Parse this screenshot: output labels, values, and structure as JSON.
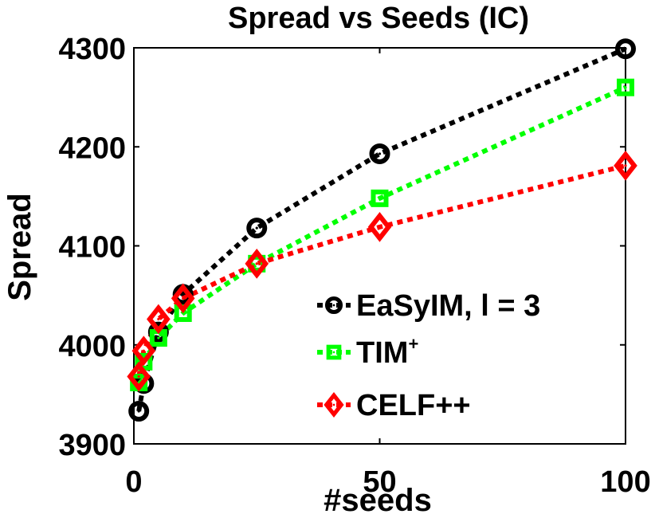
{
  "chart_data": {
    "type": "line",
    "title": "Spread vs Seeds (IC)",
    "xlabel": "#seeds",
    "ylabel": "Spread",
    "xlim": [
      0,
      100
    ],
    "ylim": [
      3900,
      4300
    ],
    "xticks": [
      0,
      50,
      100
    ],
    "yticks": [
      3900,
      4000,
      4100,
      4200,
      4300
    ],
    "grid": false,
    "legend_position": "bottom-right",
    "series": [
      {
        "name": "EaSyIM, l = 3",
        "color": "#000000",
        "marker": "circle",
        "x": [
          1,
          2,
          5,
          10,
          25,
          50,
          100
        ],
        "y": [
          3933,
          3961,
          4013,
          4051,
          4118,
          4193,
          4299
        ]
      },
      {
        "name": "TIM",
        "name_sup": "+",
        "color": "#00ff00",
        "marker": "square",
        "x": [
          1,
          2,
          5,
          10,
          25,
          50,
          100
        ],
        "y": [
          3962,
          3983,
          4007,
          4032,
          4082,
          4148,
          4260
        ]
      },
      {
        "name": "CELF++",
        "color": "#ff0000",
        "marker": "diamond",
        "x": [
          1,
          2,
          5,
          10,
          25,
          50,
          100
        ],
        "y": [
          3968,
          3994,
          4026,
          4047,
          4082,
          4119,
          4181
        ]
      }
    ]
  }
}
